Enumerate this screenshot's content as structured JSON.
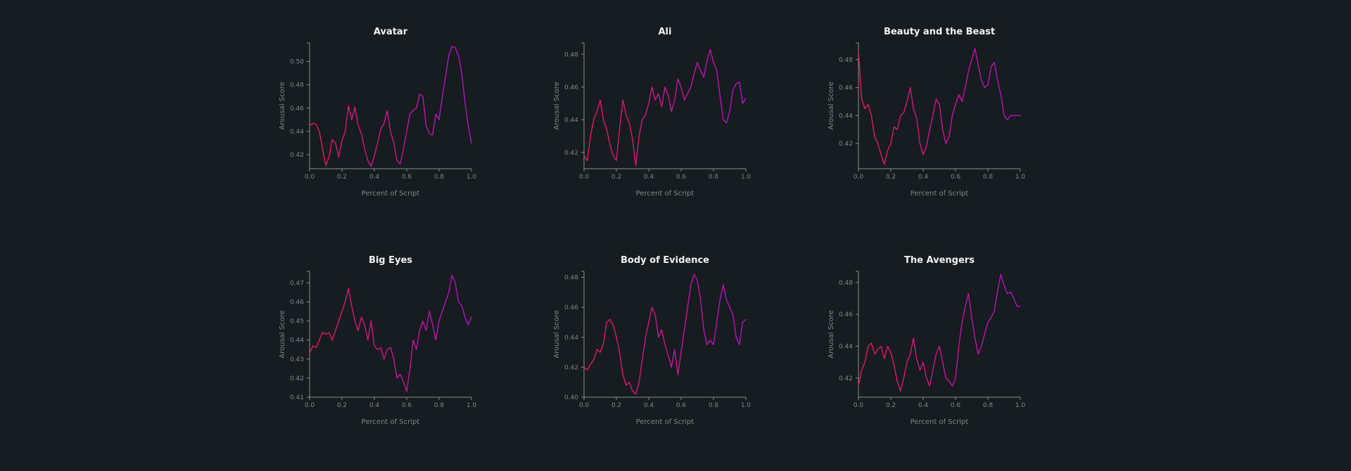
{
  "colors": {
    "background": "#161c1f",
    "line_start": "#e8195a",
    "line_end": "#b40fd2",
    "axis": "#8a8f92",
    "text": "#f2f2f2"
  },
  "chart_data": [
    {
      "type": "line",
      "title": "Avatar",
      "xlabel": "Percent of Script",
      "ylabel": "Arousal Score",
      "xlim": [
        0,
        1
      ],
      "ylim": [
        0.408,
        0.516
      ],
      "xticks": [
        "0.0",
        "0.2",
        "0.4",
        "0.6",
        "0.8",
        "1.0"
      ],
      "yticks": [
        "0.42",
        "0.44",
        "0.46",
        "0.48",
        "0.50"
      ],
      "ytick_values": [
        0.42,
        0.44,
        0.46,
        0.48,
        0.5
      ],
      "series": [
        {
          "x": [
            0,
            0.02,
            0.04,
            0.06,
            0.08,
            0.1,
            0.12,
            0.14,
            0.16,
            0.18,
            0.2,
            0.22,
            0.24,
            0.26,
            0.28,
            0.3,
            0.32,
            0.34,
            0.36,
            0.38,
            0.4,
            0.42,
            0.44,
            0.46,
            0.48,
            0.5,
            0.52,
            0.54,
            0.56,
            0.58,
            0.6,
            0.62,
            0.64,
            0.66,
            0.68,
            0.7,
            0.72,
            0.74,
            0.76,
            0.78,
            0.8,
            0.82,
            0.84,
            0.86,
            0.88,
            0.9,
            0.92,
            0.94,
            0.96,
            0.98,
            1.0
          ],
          "y": [
            0.445,
            0.447,
            0.446,
            0.44,
            0.425,
            0.411,
            0.418,
            0.433,
            0.43,
            0.418,
            0.432,
            0.44,
            0.462,
            0.45,
            0.461,
            0.445,
            0.438,
            0.425,
            0.415,
            0.41,
            0.419,
            0.43,
            0.442,
            0.447,
            0.458,
            0.44,
            0.43,
            0.415,
            0.412,
            0.425,
            0.44,
            0.455,
            0.458,
            0.46,
            0.472,
            0.47,
            0.445,
            0.438,
            0.437,
            0.455,
            0.45,
            0.47,
            0.487,
            0.505,
            0.513,
            0.512,
            0.505,
            0.49,
            0.465,
            0.445,
            0.43
          ]
        }
      ]
    },
    {
      "type": "line",
      "title": "Ali",
      "xlabel": "Percent of Script",
      "ylabel": "Arousal Score",
      "xlim": [
        0,
        1
      ],
      "ylim": [
        0.41,
        0.487
      ],
      "xticks": [
        "0.0",
        "0.2",
        "0.4",
        "0.6",
        "0.8",
        "1.0"
      ],
      "yticks": [
        "0.42",
        "0.44",
        "0.46",
        "0.48"
      ],
      "ytick_values": [
        0.42,
        0.44,
        0.46,
        0.48
      ],
      "series": [
        {
          "x": [
            0,
            0.02,
            0.04,
            0.06,
            0.08,
            0.1,
            0.12,
            0.14,
            0.16,
            0.18,
            0.2,
            0.22,
            0.24,
            0.26,
            0.28,
            0.3,
            0.32,
            0.34,
            0.36,
            0.38,
            0.4,
            0.42,
            0.44,
            0.46,
            0.48,
            0.5,
            0.52,
            0.54,
            0.56,
            0.58,
            0.6,
            0.62,
            0.64,
            0.66,
            0.68,
            0.7,
            0.72,
            0.74,
            0.76,
            0.78,
            0.8,
            0.82,
            0.84,
            0.86,
            0.88,
            0.9,
            0.92,
            0.94,
            0.96,
            0.98,
            1.0
          ],
          "y": [
            0.418,
            0.415,
            0.43,
            0.44,
            0.445,
            0.452,
            0.44,
            0.434,
            0.425,
            0.418,
            0.415,
            0.435,
            0.452,
            0.443,
            0.438,
            0.428,
            0.412,
            0.43,
            0.44,
            0.443,
            0.45,
            0.46,
            0.452,
            0.456,
            0.448,
            0.46,
            0.455,
            0.445,
            0.452,
            0.465,
            0.46,
            0.452,
            0.456,
            0.46,
            0.468,
            0.475,
            0.47,
            0.466,
            0.476,
            0.483,
            0.475,
            0.47,
            0.455,
            0.44,
            0.438,
            0.445,
            0.458,
            0.462,
            0.463,
            0.45,
            0.453
          ]
        }
      ]
    },
    {
      "type": "line",
      "title": "Beauty and the Beast",
      "xlabel": "Percent of Script",
      "ylabel": "Arousal Score",
      "xlim": [
        0,
        1
      ],
      "ylim": [
        0.402,
        0.492
      ],
      "xticks": [
        "0.0",
        "0.2",
        "0.4",
        "0.6",
        "0.8",
        "1.0"
      ],
      "yticks": [
        "0.42",
        "0.44",
        "0.46",
        "0.48"
      ],
      "ytick_values": [
        0.42,
        0.44,
        0.46,
        0.48
      ],
      "series": [
        {
          "x": [
            0,
            0.02,
            0.04,
            0.06,
            0.08,
            0.1,
            0.12,
            0.14,
            0.16,
            0.18,
            0.2,
            0.22,
            0.24,
            0.26,
            0.28,
            0.3,
            0.32,
            0.34,
            0.36,
            0.38,
            0.4,
            0.42,
            0.44,
            0.46,
            0.48,
            0.5,
            0.52,
            0.54,
            0.56,
            0.58,
            0.6,
            0.62,
            0.64,
            0.66,
            0.68,
            0.7,
            0.72,
            0.74,
            0.76,
            0.78,
            0.8,
            0.82,
            0.84,
            0.86,
            0.88,
            0.9,
            0.92,
            0.94,
            0.96,
            0.98,
            1.0
          ],
          "y": [
            0.486,
            0.452,
            0.445,
            0.448,
            0.44,
            0.425,
            0.42,
            0.412,
            0.405,
            0.415,
            0.42,
            0.432,
            0.43,
            0.44,
            0.442,
            0.45,
            0.46,
            0.445,
            0.438,
            0.42,
            0.412,
            0.418,
            0.43,
            0.44,
            0.452,
            0.448,
            0.43,
            0.42,
            0.425,
            0.44,
            0.448,
            0.455,
            0.45,
            0.46,
            0.472,
            0.48,
            0.488,
            0.476,
            0.465,
            0.46,
            0.462,
            0.475,
            0.478,
            0.465,
            0.455,
            0.44,
            0.437,
            0.44,
            0.44,
            0.44,
            0.44
          ]
        }
      ]
    },
    {
      "type": "line",
      "title": "Big Eyes",
      "xlabel": "Percent of Script",
      "ylabel": "Arousal Score",
      "xlim": [
        0,
        1
      ],
      "ylim": [
        0.41,
        0.476
      ],
      "xticks": [
        "0.0",
        "0.2",
        "0.4",
        "0.6",
        "0.8",
        "1.0"
      ],
      "yticks": [
        "0.41",
        "0.42",
        "0.43",
        "0.44",
        "0.45",
        "0.46",
        "0.47"
      ],
      "ytick_values": [
        0.41,
        0.42,
        0.43,
        0.44,
        0.45,
        0.46,
        0.47
      ],
      "series": [
        {
          "x": [
            0,
            0.02,
            0.04,
            0.06,
            0.08,
            0.1,
            0.12,
            0.14,
            0.16,
            0.18,
            0.2,
            0.22,
            0.24,
            0.26,
            0.28,
            0.3,
            0.32,
            0.34,
            0.36,
            0.38,
            0.4,
            0.42,
            0.44,
            0.46,
            0.48,
            0.5,
            0.52,
            0.54,
            0.56,
            0.58,
            0.6,
            0.62,
            0.64,
            0.66,
            0.68,
            0.7,
            0.72,
            0.74,
            0.76,
            0.78,
            0.8,
            0.82,
            0.84,
            0.86,
            0.88,
            0.9,
            0.92,
            0.94,
            0.96,
            0.98,
            1.0
          ],
          "y": [
            0.433,
            0.437,
            0.436,
            0.44,
            0.444,
            0.443,
            0.444,
            0.44,
            0.445,
            0.45,
            0.455,
            0.46,
            0.467,
            0.458,
            0.45,
            0.445,
            0.452,
            0.448,
            0.44,
            0.45,
            0.437,
            0.435,
            0.436,
            0.43,
            0.435,
            0.436,
            0.43,
            0.42,
            0.422,
            0.418,
            0.413,
            0.425,
            0.44,
            0.435,
            0.445,
            0.45,
            0.445,
            0.455,
            0.448,
            0.44,
            0.45,
            0.455,
            0.46,
            0.465,
            0.474,
            0.47,
            0.46,
            0.458,
            0.452,
            0.448,
            0.452
          ]
        }
      ]
    },
    {
      "type": "line",
      "title": "Body of Evidence",
      "xlabel": "Percent of Script",
      "ylabel": "Arousal Score",
      "xlim": [
        0,
        1
      ],
      "ylim": [
        0.4,
        0.484
      ],
      "xticks": [
        "0.0",
        "0.2",
        "0.4",
        "0.6",
        "0.8",
        "1.0"
      ],
      "yticks": [
        "0.40",
        "0.42",
        "0.44",
        "0.46",
        "0.48"
      ],
      "ytick_values": [
        0.4,
        0.42,
        0.44,
        0.46,
        0.48
      ],
      "series": [
        {
          "x": [
            0,
            0.02,
            0.04,
            0.06,
            0.08,
            0.1,
            0.12,
            0.14,
            0.16,
            0.18,
            0.2,
            0.22,
            0.24,
            0.26,
            0.28,
            0.3,
            0.32,
            0.34,
            0.36,
            0.38,
            0.4,
            0.42,
            0.44,
            0.46,
            0.48,
            0.5,
            0.52,
            0.54,
            0.56,
            0.58,
            0.6,
            0.62,
            0.64,
            0.66,
            0.68,
            0.7,
            0.72,
            0.74,
            0.76,
            0.78,
            0.8,
            0.82,
            0.84,
            0.86,
            0.88,
            0.9,
            0.92,
            0.94,
            0.96,
            0.98,
            1.0
          ],
          "y": [
            0.42,
            0.418,
            0.422,
            0.425,
            0.432,
            0.43,
            0.436,
            0.45,
            0.452,
            0.448,
            0.44,
            0.43,
            0.415,
            0.408,
            0.41,
            0.404,
            0.402,
            0.41,
            0.425,
            0.44,
            0.45,
            0.46,
            0.455,
            0.44,
            0.445,
            0.435,
            0.428,
            0.42,
            0.432,
            0.415,
            0.43,
            0.445,
            0.46,
            0.475,
            0.482,
            0.478,
            0.465,
            0.445,
            0.435,
            0.438,
            0.435,
            0.45,
            0.465,
            0.475,
            0.465,
            0.46,
            0.455,
            0.44,
            0.435,
            0.45,
            0.452
          ]
        }
      ]
    },
    {
      "type": "line",
      "title": "The Avengers",
      "xlabel": "Percent of Script",
      "ylabel": "Arousal Score",
      "xlim": [
        0,
        1
      ],
      "ylim": [
        0.408,
        0.487
      ],
      "xticks": [
        "0.0",
        "0.2",
        "0.4",
        "0.6",
        "0.8",
        "1.0"
      ],
      "yticks": [
        "0.42",
        "0.44",
        "0.46",
        "0.48"
      ],
      "ytick_values": [
        0.42,
        0.44,
        0.46,
        0.48
      ],
      "series": [
        {
          "x": [
            0,
            0.02,
            0.04,
            0.06,
            0.08,
            0.1,
            0.12,
            0.14,
            0.16,
            0.18,
            0.2,
            0.22,
            0.24,
            0.26,
            0.28,
            0.3,
            0.32,
            0.34,
            0.36,
            0.38,
            0.4,
            0.42,
            0.44,
            0.46,
            0.48,
            0.5,
            0.52,
            0.54,
            0.56,
            0.58,
            0.6,
            0.62,
            0.64,
            0.66,
            0.68,
            0.7,
            0.72,
            0.74,
            0.76,
            0.78,
            0.8,
            0.82,
            0.84,
            0.86,
            0.88,
            0.9,
            0.92,
            0.94,
            0.96,
            0.98,
            1.0
          ],
          "y": [
            0.415,
            0.425,
            0.43,
            0.44,
            0.442,
            0.435,
            0.438,
            0.44,
            0.432,
            0.44,
            0.436,
            0.428,
            0.418,
            0.412,
            0.42,
            0.43,
            0.435,
            0.445,
            0.432,
            0.425,
            0.43,
            0.42,
            0.415,
            0.425,
            0.435,
            0.44,
            0.43,
            0.42,
            0.418,
            0.415,
            0.42,
            0.44,
            0.455,
            0.465,
            0.473,
            0.458,
            0.445,
            0.435,
            0.44,
            0.448,
            0.455,
            0.458,
            0.462,
            0.475,
            0.485,
            0.478,
            0.473,
            0.474,
            0.47,
            0.465,
            0.465
          ]
        }
      ]
    }
  ]
}
